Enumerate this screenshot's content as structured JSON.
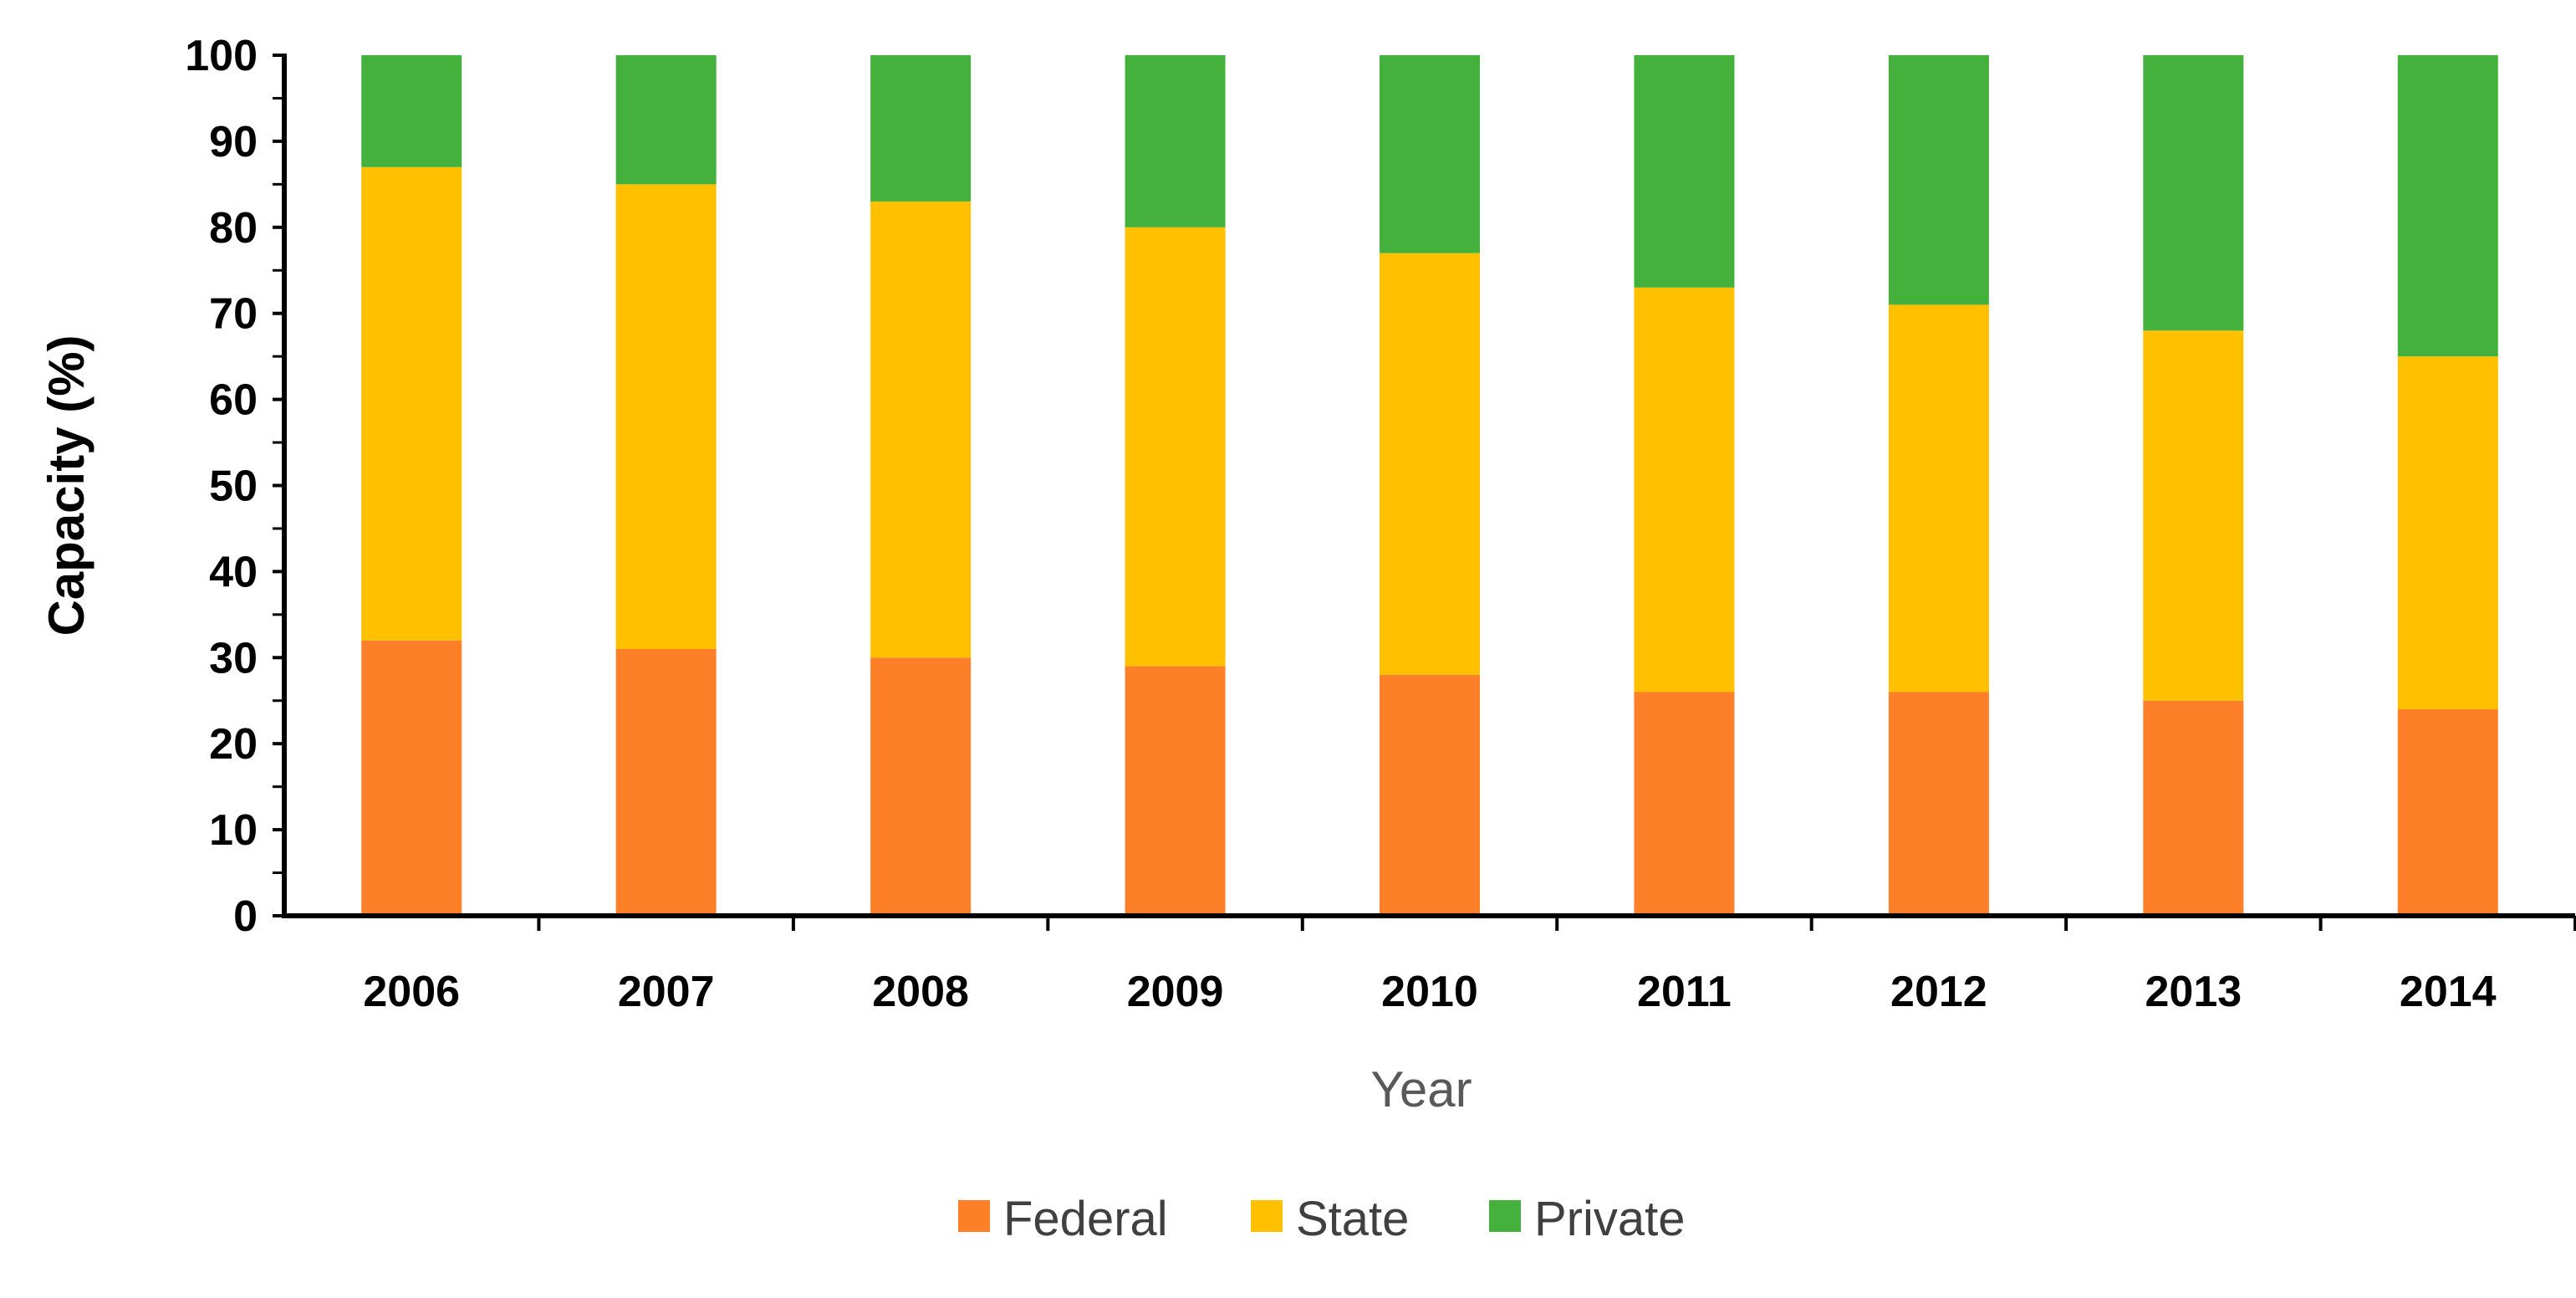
{
  "chart_data": {
    "type": "bar",
    "stacked": true,
    "title": "",
    "xlabel": "Year",
    "ylabel": "Capacity (%)",
    "ylim": [
      0,
      100
    ],
    "y_ticks": [
      0,
      10,
      20,
      30,
      40,
      50,
      60,
      70,
      80,
      90,
      100
    ],
    "y_tick_labels": [
      "0",
      "10",
      "20",
      "30",
      "40",
      "50",
      "60",
      "70",
      "80",
      "90",
      "100"
    ],
    "grid": false,
    "legend_position": "bottom-center",
    "categories": [
      "2006",
      "2007",
      "2008",
      "2009",
      "2010",
      "2011",
      "2012",
      "2013",
      "2014"
    ],
    "series": [
      {
        "name": "Federal",
        "color": "#FD7F28",
        "values": [
          32,
          31,
          30,
          29,
          28,
          26,
          26,
          25,
          24
        ]
      },
      {
        "name": "State",
        "color": "#FFC000",
        "values": [
          55,
          54,
          53,
          51,
          49,
          47,
          45,
          43,
          41
        ]
      },
      {
        "name": "Private",
        "color": "#43B13C",
        "values": [
          13,
          15,
          17,
          20,
          23,
          27,
          29,
          32,
          35
        ]
      }
    ]
  }
}
